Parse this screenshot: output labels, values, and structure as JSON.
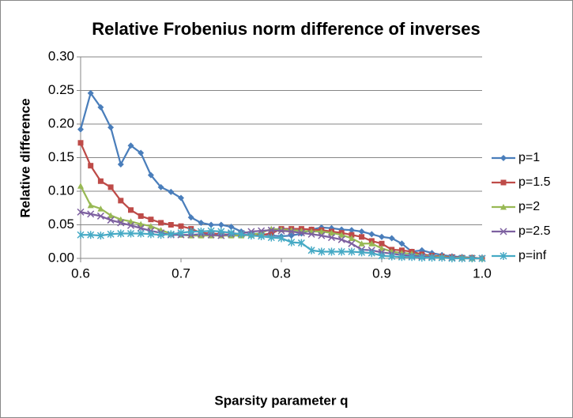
{
  "chart_data": {
    "type": "line",
    "title": "Relative Frobenius norm difference of inverses",
    "x_label": "Sparsity parameter q",
    "y_label": "Relative difference",
    "x": [
      0.6,
      0.61,
      0.62,
      0.63,
      0.64,
      0.65,
      0.66,
      0.67,
      0.68,
      0.69,
      0.7,
      0.71,
      0.72,
      0.73,
      0.74,
      0.75,
      0.76,
      0.77,
      0.78,
      0.79,
      0.8,
      0.81,
      0.82,
      0.83,
      0.84,
      0.85,
      0.86,
      0.87,
      0.88,
      0.89,
      0.9,
      0.91,
      0.92,
      0.93,
      0.94,
      0.95,
      0.96,
      0.97,
      0.98,
      0.99,
      1.0
    ],
    "series": [
      {
        "name": "p=1",
        "color": "#4a7ebb",
        "marker": "diamond",
        "values": [
          0.192,
          0.246,
          0.225,
          0.195,
          0.14,
          0.168,
          0.157,
          0.124,
          0.106,
          0.099,
          0.09,
          0.061,
          0.053,
          0.05,
          0.05,
          0.047,
          0.04,
          0.037,
          0.036,
          0.034,
          0.033,
          0.034,
          0.037,
          0.043,
          0.046,
          0.045,
          0.043,
          0.042,
          0.04,
          0.036,
          0.032,
          0.03,
          0.022,
          0.01,
          0.012,
          0.008,
          0.005,
          0.003,
          0.002,
          0.001,
          0.0
        ]
      },
      {
        "name": "p=1.5",
        "color": "#be4b48",
        "marker": "square",
        "values": [
          0.172,
          0.138,
          0.115,
          0.106,
          0.086,
          0.072,
          0.063,
          0.058,
          0.053,
          0.05,
          0.048,
          0.044,
          0.038,
          0.037,
          0.036,
          0.035,
          0.035,
          0.035,
          0.035,
          0.037,
          0.044,
          0.044,
          0.044,
          0.043,
          0.042,
          0.04,
          0.038,
          0.035,
          0.032,
          0.026,
          0.022,
          0.013,
          0.012,
          0.01,
          0.006,
          0.004,
          0.003,
          0.002,
          0.001,
          0.001,
          0.0
        ]
      },
      {
        "name": "p=2",
        "color": "#98b954",
        "marker": "triangle",
        "values": [
          0.108,
          0.079,
          0.074,
          0.064,
          0.058,
          0.055,
          0.051,
          0.048,
          0.042,
          0.037,
          0.035,
          0.034,
          0.034,
          0.034,
          0.034,
          0.034,
          0.034,
          0.035,
          0.038,
          0.044,
          0.043,
          0.042,
          0.041,
          0.04,
          0.04,
          0.038,
          0.035,
          0.03,
          0.022,
          0.022,
          0.015,
          0.01,
          0.008,
          0.007,
          0.004,
          0.003,
          0.002,
          0.001,
          0.001,
          0.0,
          0.0
        ]
      },
      {
        "name": "p=2.5",
        "color": "#7d60a0",
        "marker": "x",
        "values": [
          0.069,
          0.066,
          0.063,
          0.057,
          0.053,
          0.049,
          0.045,
          0.041,
          0.038,
          0.035,
          0.035,
          0.035,
          0.036,
          0.035,
          0.034,
          0.036,
          0.037,
          0.04,
          0.041,
          0.042,
          0.041,
          0.04,
          0.038,
          0.036,
          0.034,
          0.031,
          0.028,
          0.022,
          0.013,
          0.012,
          0.009,
          0.007,
          0.005,
          0.004,
          0.003,
          0.002,
          0.001,
          0.001,
          0.0,
          0.0,
          0.0
        ]
      },
      {
        "name": "p=inf",
        "color": "#46aac5",
        "marker": "star",
        "values": [
          0.035,
          0.035,
          0.034,
          0.036,
          0.037,
          0.037,
          0.037,
          0.036,
          0.035,
          0.036,
          0.038,
          0.04,
          0.04,
          0.041,
          0.04,
          0.038,
          0.036,
          0.034,
          0.033,
          0.031,
          0.03,
          0.024,
          0.023,
          0.012,
          0.01,
          0.01,
          0.01,
          0.01,
          0.009,
          0.008,
          0.004,
          0.003,
          0.002,
          0.002,
          0.001,
          0.001,
          0.001,
          0.0,
          0.0,
          0.0,
          0.0
        ]
      }
    ],
    "xlim": [
      0.6,
      1.0
    ],
    "xticks": [
      {
        "value": 0.6,
        "label": "0.6"
      },
      {
        "value": 0.7,
        "label": "0.7"
      },
      {
        "value": 0.8,
        "label": "0.8"
      },
      {
        "value": 0.9,
        "label": "0.9"
      },
      {
        "value": 1.0,
        "label": "1.0"
      }
    ],
    "ylim": [
      0,
      0.3
    ],
    "yticks": [
      {
        "value": 0,
        "label": "0.00"
      },
      {
        "value": 0.05,
        "label": "0.05"
      },
      {
        "value": 0.1,
        "label": "0.10"
      },
      {
        "value": 0.15,
        "label": "0.15"
      },
      {
        "value": 0.2,
        "label": "0.20"
      },
      {
        "value": 0.25,
        "label": "0.25"
      },
      {
        "value": 0.3,
        "label": "0.30"
      }
    ],
    "grid": true,
    "legend": "right"
  }
}
